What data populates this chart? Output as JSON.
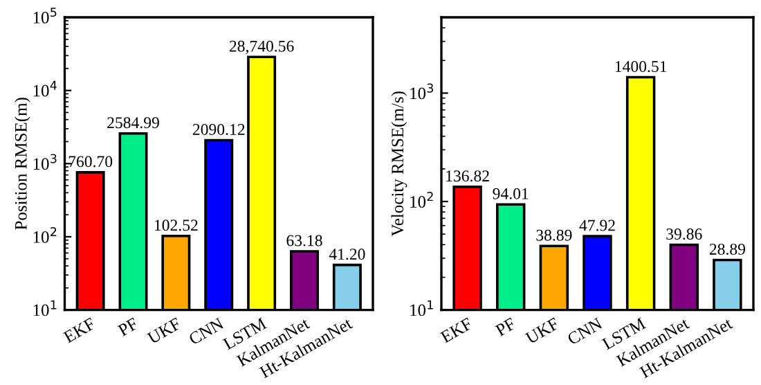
{
  "chart_data": [
    {
      "type": "bar",
      "ylabel": "Position RMSE(m)",
      "log": true,
      "grid": false,
      "legend": false,
      "categories": [
        "EKF",
        "PF",
        "UKF",
        "CNN",
        "LSTM",
        "KalmanNet",
        "Ht-KalmanNet"
      ],
      "values": [
        760.7,
        2584.99,
        102.52,
        2090.12,
        28740.56,
        63.18,
        41.2
      ],
      "value_labels": [
        "760.70",
        "2584.99",
        "102.52",
        "2090.12",
        "28,740.56",
        "63.18",
        "41.20"
      ],
      "colors": [
        "#ff0000",
        "#00ee88",
        "#ffa500",
        "#0000ff",
        "#ffff00",
        "#800080",
        "#87ceeb"
      ],
      "ylim": [
        10,
        100000
      ],
      "yticks": [
        {
          "value": 10,
          "label": "10$^{1}$"
        },
        {
          "value": 100,
          "label": "10$^{2}$"
        },
        {
          "value": 1000,
          "label": "10$^{3}$"
        },
        {
          "value": 10000,
          "label": "10$^{4}$"
        },
        {
          "value": 100000,
          "label": "10$^{5}$"
        }
      ]
    },
    {
      "type": "bar",
      "ylabel": "Velocity RMSE(m/s)",
      "log": true,
      "grid": false,
      "legend": false,
      "categories": [
        "EKF",
        "PF",
        "UKF",
        "CNN",
        "LSTM",
        "KalmanNet",
        "Ht-KalmanNet"
      ],
      "values": [
        136.82,
        94.01,
        38.89,
        47.92,
        1400.51,
        39.86,
        28.89
      ],
      "value_labels": [
        "136.82",
        "94.01",
        "38.89",
        "47.92",
        "1400.51",
        "39.86",
        "28.89"
      ],
      "colors": [
        "#ff0000",
        "#00ee88",
        "#ffa500",
        "#0000ff",
        "#ffff00",
        "#800080",
        "#87ceeb"
      ],
      "ylim": [
        10,
        5000
      ],
      "yticks": [
        {
          "value": 10,
          "label": "10$^{1}$"
        },
        {
          "value": 100,
          "label": "10$^{2}$"
        },
        {
          "value": 1000,
          "label": "10$^{3}$"
        }
      ]
    }
  ]
}
